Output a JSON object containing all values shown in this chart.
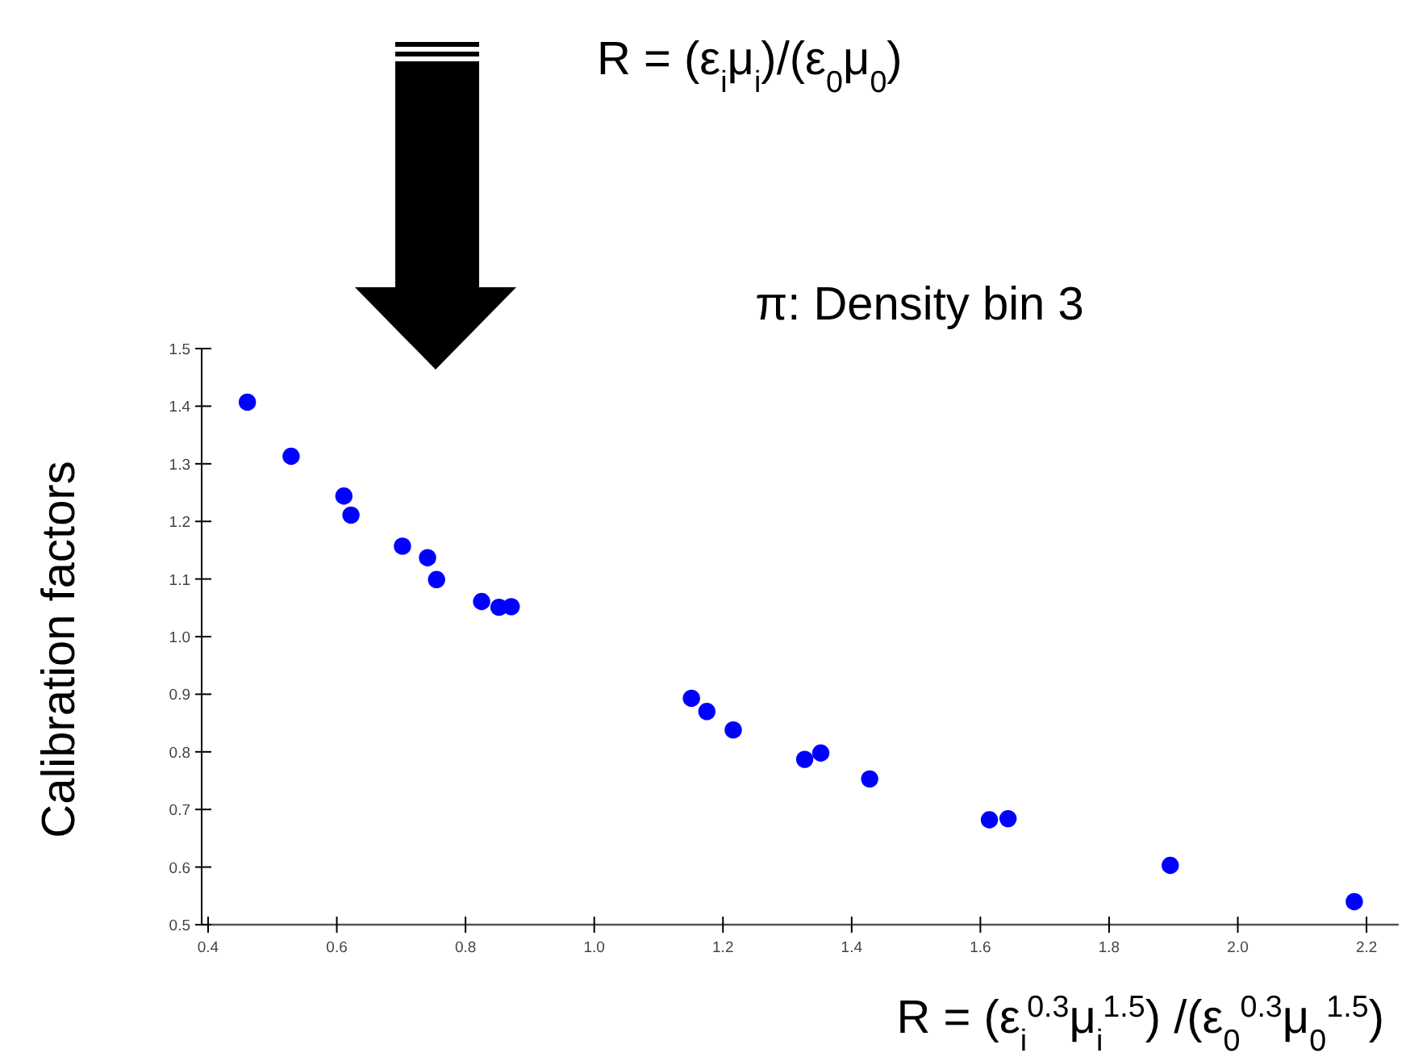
{
  "chart_data": {
    "type": "scatter",
    "title": "π: Density bin 3",
    "annotations": [
      "R = (ε$_{i}$μ$_{i}$)/(ε$_{0}$μ$_{0}$)"
    ],
    "xlabel": "R = (ε$_{i}$$^{0.3}$μ$_{i}$$^{1.5}$) /(ε$_{0}$$^{0.3}$μ$_{0}$$^{1.5}$)",
    "ylabel": "Calibration factors",
    "series": [
      {
        "color": "#0000ff",
        "x": [
          0.461,
          0.529,
          0.611,
          0.622,
          0.702,
          0.741,
          0.755,
          0.825,
          0.852,
          0.871,
          1.151,
          1.175,
          1.216,
          1.327,
          1.352,
          1.428,
          1.614,
          1.643,
          1.895,
          2.181
        ],
        "values": [
          1.407,
          1.313,
          1.244,
          1.211,
          1.157,
          1.137,
          1.099,
          1.061,
          1.051,
          1.052,
          0.893,
          0.87,
          0.838,
          0.787,
          0.798,
          0.753,
          0.682,
          0.684,
          0.603,
          0.54
        ]
      }
    ],
    "xlim": [
      0.39,
      2.25
    ],
    "xticks": [
      0.4,
      0.6,
      0.8,
      {
        "value": 1,
        "label": "1.0"
      },
      1.2,
      1.4,
      1.6,
      1.8,
      {
        "value": 2,
        "label": "2.0"
      },
      2.2
    ],
    "ylim": [
      0.5,
      1.5
    ],
    "yticks": [
      0.5,
      0.6,
      0.7,
      0.8,
      0.9,
      {
        "value": 1,
        "label": "1.0"
      },
      1.1,
      1.2,
      1.3,
      1.4,
      1.5
    ],
    "marker": "circle"
  }
}
